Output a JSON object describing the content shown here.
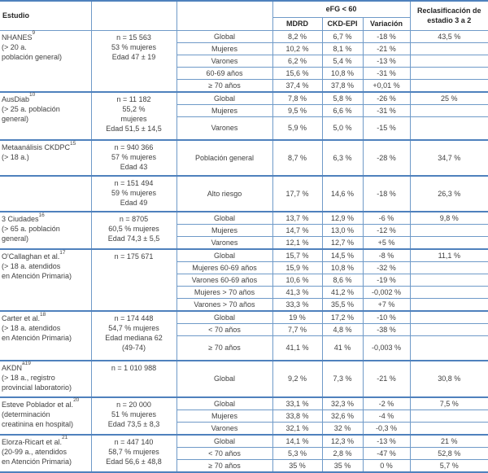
{
  "colors": {
    "accent_blue": "#4f81bd",
    "grid_blue": "#6f9ac8",
    "text": "#3f3f3f"
  },
  "header": {
    "estudio": "Estudio",
    "efg_group": "eFG < 60",
    "mdrd": "MDRD",
    "ckdepi": "CKD-EPI",
    "variacion": "Variación",
    "reclasificacion": "Reclasificación de estadio 3 a 2"
  },
  "sections": [
    {
      "study": {
        "name": "NHANES",
        "ref": "9",
        "desc": [
          "(> 20 a.",
          "población general)"
        ]
      },
      "info": [
        "n = 15 563",
        "53 % mujeres",
        "Edad 47 ± 19"
      ],
      "rows": [
        {
          "subgroup": "Global",
          "mdrd": "8,2 %",
          "ckd_epi": "6,7 %",
          "variacion": "-18 %",
          "reclasificacion": "43,5 %"
        },
        {
          "subgroup": "Mujeres",
          "mdrd": "10,2 %",
          "ckd_epi": "8,1 %",
          "variacion": "-21 %",
          "reclasificacion": ""
        },
        {
          "subgroup": "Varones",
          "mdrd": "6,2 %",
          "ckd_epi": "5,4 %",
          "variacion": "-13 %",
          "reclasificacion": ""
        },
        {
          "subgroup": "60-69 años",
          "mdrd": "15,6 %",
          "ckd_epi": "10,8 %",
          "variacion": "-31 %",
          "reclasificacion": ""
        },
        {
          "subgroup": "≥ 70 años",
          "mdrd": "37,4 %",
          "ckd_epi": "37,8 %",
          "variacion": "+0,01 %",
          "reclasificacion": ""
        }
      ]
    },
    {
      "study": {
        "name": "AusDiab",
        "ref": "10",
        "desc": [
          "(> 25 a. población",
          "general)"
        ]
      },
      "info": [
        "n = 11 182",
        "55,2 %",
        "mujeres",
        "Edad 51,5 ± 14,5"
      ],
      "rows": [
        {
          "subgroup": "Global",
          "mdrd": "7,8 %",
          "ckd_epi": "5,8 %",
          "variacion": "-26 %",
          "reclasificacion": "25 %"
        },
        {
          "subgroup": "Mujeres",
          "mdrd": "9,5 %",
          "ckd_epi": "6,6 %",
          "variacion": "-31 %",
          "reclasificacion": ""
        },
        {
          "subgroup": "Varones",
          "mdrd": "5,9 %",
          "ckd_epi": "5,0 %",
          "variacion": "-15 %",
          "reclasificacion": ""
        }
      ]
    },
    {
      "study": {
        "name": "Metaanálisis CKDPC",
        "ref": "15",
        "desc": [
          "(> 18 a.)"
        ]
      },
      "info": [
        "n = 940 366",
        "57 % mujeres",
        "Edad 43"
      ],
      "rows": [
        {
          "subgroup": "Población general",
          "mdrd": "8,7 %",
          "ckd_epi": "6,3 %",
          "variacion": "-28 %",
          "reclasificacion": "34,7 %"
        }
      ]
    },
    {
      "study": null,
      "info": [
        "n = 151 494",
        "59 % mujeres",
        "Edad 49"
      ],
      "rows": [
        {
          "subgroup": "Alto riesgo",
          "mdrd": "17,7 %",
          "ckd_epi": "14,6 %",
          "variacion": "-18 %",
          "reclasificacion": "26,3 %"
        }
      ]
    },
    {
      "study": {
        "name": "3 Ciudades",
        "ref": "16",
        "desc": [
          "(> 65 a. población",
          "general)"
        ]
      },
      "info": [
        "n = 8705",
        "60,5 % mujeres",
        "Edad 74,3 ± 5,5"
      ],
      "rows": [
        {
          "subgroup": "Global",
          "mdrd": "13,7 %",
          "ckd_epi": "12,9 %",
          "variacion": "-6 %",
          "reclasificacion": "9,8 %"
        },
        {
          "subgroup": "Mujeres",
          "mdrd": "14,7 %",
          "ckd_epi": "13,0 %",
          "variacion": "-12 %",
          "reclasificacion": ""
        },
        {
          "subgroup": "Varones",
          "mdrd": "12,1 %",
          "ckd_epi": "12,7 %",
          "variacion": "+5 %",
          "reclasificacion": ""
        }
      ]
    },
    {
      "study": {
        "name": "O'Callaghan et al.",
        "ref": "17",
        "desc": [
          "(> 18 a. atendidos",
          "en Atención Primaria)"
        ]
      },
      "info": [
        "n = 175 671"
      ],
      "rows": [
        {
          "subgroup": "Global",
          "mdrd": "15,7 %",
          "ckd_epi": "14,5 %",
          "variacion": "-8 %",
          "reclasificacion": "11,1 %"
        },
        {
          "subgroup": "Mujeres 60-69 años",
          "mdrd": "15,9 %",
          "ckd_epi": "10,8 %",
          "variacion": "-32 %",
          "reclasificacion": ""
        },
        {
          "subgroup": "Varones 60-69 años",
          "mdrd": "10,6 %",
          "ckd_epi": "8,6 %",
          "variacion": "-19 %",
          "reclasificacion": ""
        },
        {
          "subgroup": "Mujeres > 70 años",
          "mdrd": "41,3 %",
          "ckd_epi": "41,2 %",
          "variacion": "-0,002 %",
          "reclasificacion": ""
        },
        {
          "subgroup": "Varones > 70 años",
          "mdrd": "33,3 %",
          "ckd_epi": "35,5 %",
          "variacion": "+7 %",
          "reclasificacion": ""
        }
      ]
    },
    {
      "study": {
        "name": "Carter et al.",
        "ref": "18",
        "desc": [
          "(> 18 a. atendidos",
          "en Atención Primaria)"
        ]
      },
      "info": [
        "n = 174 448",
        "54,7 % mujeres",
        "Edad mediana 62",
        "(49-74)"
      ],
      "rows": [
        {
          "subgroup": "Global",
          "mdrd": "19 %",
          "ckd_epi": "17,2 %",
          "variacion": "-10 %",
          "reclasificacion": ""
        },
        {
          "subgroup": "< 70 años",
          "mdrd": "7,7 %",
          "ckd_epi": "4,8 %",
          "variacion": "-38 %",
          "reclasificacion": ""
        },
        {
          "subgroup": "≥ 70 años",
          "mdrd": "41,1 %",
          "ckd_epi": "41 %",
          "variacion": "-0,003 %",
          "reclasificacion": ""
        }
      ]
    },
    {
      "study": {
        "name": "AKDN",
        "ref": "a19",
        "desc": [
          "(> 18 a., registro",
          "provincial laboratorio)"
        ]
      },
      "info": [
        "n = 1 010 988"
      ],
      "rows": [
        {
          "subgroup": "Global",
          "mdrd": "9,2 %",
          "ckd_epi": "7,3 %",
          "variacion": "-21 %",
          "reclasificacion": "30,8 %"
        }
      ]
    },
    {
      "study": {
        "name": "Esteve Poblador et al.",
        "ref": "20",
        "desc": [
          "(determinación",
          "creatinina en hospital)"
        ]
      },
      "info": [
        "n = 20 000",
        "51 % mujeres",
        "Edad 73,5 ± 8,3"
      ],
      "rows": [
        {
          "subgroup": "Global",
          "mdrd": "33,1 %",
          "ckd_epi": "32,3 %",
          "variacion": "-2 %",
          "reclasificacion": "7,5 %"
        },
        {
          "subgroup": "Mujeres",
          "mdrd": "33,8 %",
          "ckd_epi": "32,6 %",
          "variacion": "-4 %",
          "reclasificacion": ""
        },
        {
          "subgroup": "Varones",
          "mdrd": "32,1 %",
          "ckd_epi": "32 %",
          "variacion": "-0,3 %",
          "reclasificacion": ""
        }
      ]
    },
    {
      "study": {
        "name": "Elorza-Ricart et al.",
        "ref": "21",
        "desc": [
          "(20-99 a., atendidos",
          "en Atención Primaria)"
        ]
      },
      "info": [
        "n = 447 140",
        "58,7 % mujeres",
        "Edad 56,6 ± 48,8"
      ],
      "rows": [
        {
          "subgroup": "Global",
          "mdrd": "14,1 %",
          "ckd_epi": "12,3 %",
          "variacion": "-13 %",
          "reclasificacion": "21 %"
        },
        {
          "subgroup": "< 70 años",
          "mdrd": "5,3 %",
          "ckd_epi": "2,8 %",
          "variacion": "-47 %",
          "reclasificacion": "52,8 %"
        },
        {
          "subgroup": "≥ 70 años",
          "mdrd": "35 %",
          "ckd_epi": "35 %",
          "variacion": "0 %",
          "reclasificacion": "5,7 %"
        }
      ]
    }
  ]
}
